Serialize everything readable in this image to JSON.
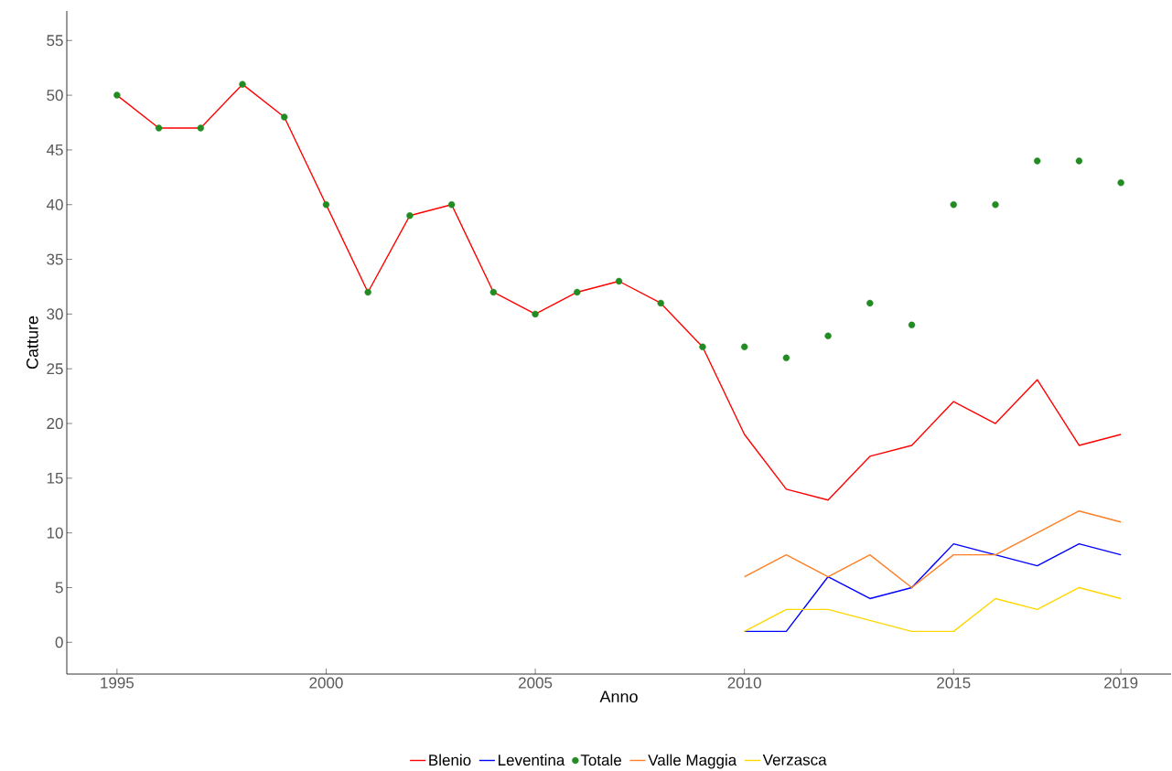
{
  "chart_data": {
    "type": "line",
    "xlabel": "Anno",
    "ylabel": "Catture",
    "xlim": [
      1993.8,
      2020.2
    ],
    "xticks": [
      1995,
      2000,
      2005,
      2010,
      2015,
      2019
    ],
    "ylim": [
      -2.9,
      57.7
    ],
    "yticks": [
      0,
      5,
      10,
      15,
      20,
      25,
      30,
      35,
      40,
      45,
      50,
      55
    ],
    "grid": false,
    "legend": "bottom",
    "series": [
      {
        "name": "Blenio",
        "color": "#ff0000",
        "x": [
          1995,
          1996,
          1997,
          1998,
          1999,
          2000,
          2001,
          2002,
          2003,
          2004,
          2005,
          2006,
          2007,
          2008,
          2009,
          2010,
          2011,
          2012,
          2013,
          2014,
          2015,
          2016,
          2017,
          2018,
          2019
        ],
        "values": [
          50,
          47,
          47,
          51,
          48,
          40,
          32,
          39,
          40,
          32,
          30,
          32,
          33,
          31,
          27,
          19,
          14,
          13,
          17,
          18,
          22,
          20,
          24,
          18,
          19
        ]
      },
      {
        "name": "Leventina",
        "color": "#0000ff",
        "x": [
          2010,
          2011,
          2012,
          2013,
          2014,
          2015,
          2016,
          2017,
          2018,
          2019
        ],
        "values": [
          1,
          1,
          6,
          4,
          5,
          9,
          8,
          7,
          9,
          8
        ]
      },
      {
        "name": "Totale",
        "color": "#228b22",
        "type": "scatter",
        "marker": "circle",
        "x": [
          1995,
          1996,
          1997,
          1998,
          1999,
          2000,
          2001,
          2002,
          2003,
          2004,
          2005,
          2006,
          2007,
          2008,
          2009,
          2010,
          2011,
          2012,
          2013,
          2014,
          2015,
          2016,
          2017,
          2018,
          2019
        ],
        "values": [
          50,
          47,
          47,
          51,
          48,
          40,
          32,
          39,
          40,
          32,
          30,
          32,
          33,
          31,
          27,
          27,
          26,
          28,
          31,
          29,
          40,
          40,
          44,
          44,
          42
        ]
      },
      {
        "name": "Valle Maggia",
        "color": "#ff7f24",
        "x": [
          2010,
          2011,
          2012,
          2013,
          2014,
          2015,
          2016,
          2017,
          2018,
          2019
        ],
        "values": [
          6,
          8,
          6,
          8,
          5,
          8,
          8,
          10,
          12,
          11
        ]
      },
      {
        "name": "Verzasca",
        "color": "#ffd700",
        "x": [
          2010,
          2011,
          2012,
          2013,
          2014,
          2015,
          2016,
          2017,
          2018,
          2019
        ],
        "values": [
          1,
          3,
          3,
          2,
          1,
          1,
          4,
          3,
          5,
          4
        ]
      }
    ]
  }
}
